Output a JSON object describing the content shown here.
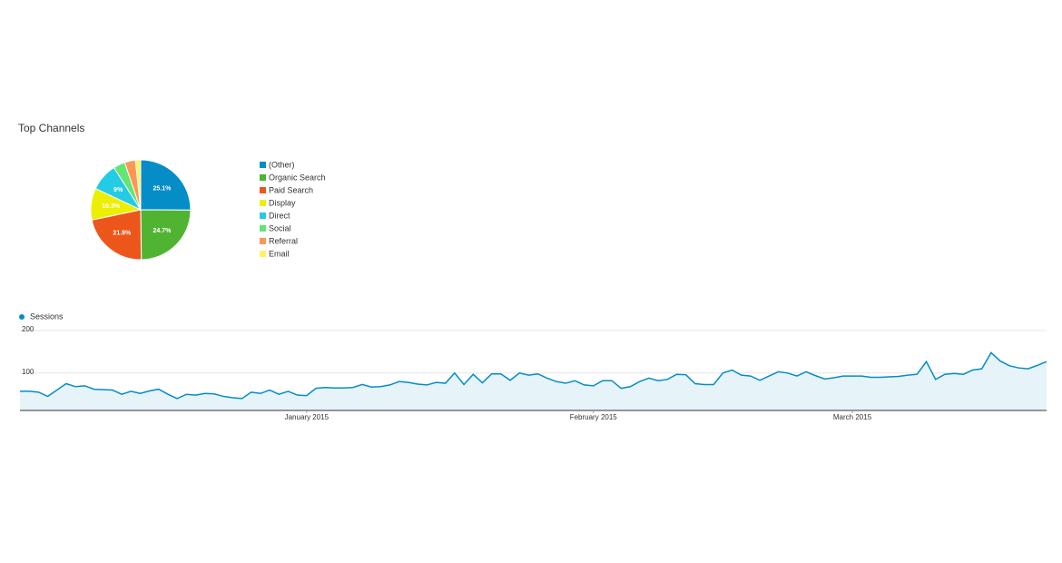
{
  "chart_data": [
    {
      "type": "pie",
      "title": "Top Channels",
      "categories": [
        "(Other)",
        "Organic Search",
        "Paid Search",
        "Display",
        "Direct",
        "Social",
        "Referral",
        "Email"
      ],
      "values": [
        25.1,
        24.7,
        21.9,
        10.3,
        9,
        3.8,
        3.5,
        1.7
      ],
      "value_labels": [
        "25.1%",
        "24.7%",
        "21.9%",
        "10.3%",
        "9%",
        null,
        null,
        null
      ],
      "colors": [
        "#058dc7",
        "#50b432",
        "#ed561b",
        "#edef00",
        "#24cbe5",
        "#64e572",
        "#ff9655",
        "#fff263"
      ]
    },
    {
      "type": "line",
      "series": [
        {
          "name": "Sessions",
          "color": "#058dc7",
          "values": [
            57,
            57,
            55,
            45,
            60,
            75,
            68,
            70,
            62,
            61,
            60,
            50,
            57,
            52,
            58,
            62,
            50,
            40,
            50,
            48,
            52,
            51,
            45,
            42,
            40,
            55,
            52,
            60,
            50,
            57,
            48,
            47,
            64,
            66,
            65,
            65,
            66,
            73,
            67,
            68,
            72,
            80,
            78,
            74,
            72,
            78,
            76,
            100,
            73,
            97,
            77,
            98,
            98,
            83,
            100,
            95,
            98,
            88,
            80,
            76,
            82,
            72,
            70,
            82,
            82,
            64,
            68,
            80,
            88,
            82,
            85,
            97,
            96,
            75,
            73,
            73,
            100,
            107,
            95,
            93,
            83,
            93,
            103,
            100,
            93,
            103,
            94,
            86,
            89,
            93,
            93,
            93,
            90,
            90,
            91,
            92,
            95,
            97,
            127,
            85,
            97,
            99,
            97,
            107,
            110,
            148,
            128,
            117,
            112,
            110,
            118,
            127
          ]
        }
      ],
      "xlim": [
        0,
        111
      ],
      "xticks": [
        {
          "value": 31,
          "label": "January 2015"
        },
        {
          "value": 62,
          "label": "February 2015"
        },
        {
          "value": 90,
          "label": "March 2015"
        }
      ],
      "ylim": [
        12,
        200
      ],
      "yticks": [
        100,
        200
      ],
      "grid": true
    }
  ]
}
